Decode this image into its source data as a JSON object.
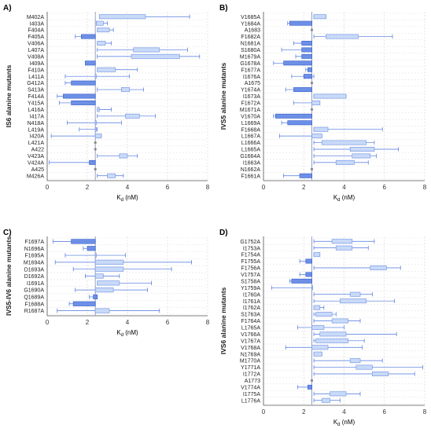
{
  "figure": {
    "colors": {
      "above": "#c9daf8",
      "above_stroke": "#7a9be6",
      "below": "#6d8fe6",
      "below_stroke": "#3f66d0",
      "whisker": "#4a73dc",
      "ref_line": "#9aa4b8",
      "grid": "#d9d9d9",
      "zero": "#888888"
    }
  },
  "chart_data": [
    {
      "type": "box",
      "panel_label": "A)",
      "ylabel": "IS6 alanine mutants",
      "xlabel": "K",
      "xlabel_sub": "d",
      "xlabel_unit": " (nM)",
      "xlim": [
        0,
        8
      ],
      "xticks": [
        "0",
        "2",
        "4",
        "6",
        "8"
      ],
      "reference_value": 2.4,
      "grid": true,
      "categories": [
        "M402A",
        "I403A",
        "F404A",
        "F405A",
        "V406A",
        "L407A",
        "V408A",
        "I409A",
        "F410A",
        "L411A",
        "G412A",
        "S413A",
        "F414A",
        "Y415A",
        "L416A",
        "I417A",
        "N418A",
        "L419A",
        "I420A",
        "L421A",
        "A422",
        "V423A",
        "V424A",
        "A425",
        "M426A"
      ],
      "boxes": [
        {
          "min": 2.6,
          "q1": 2.6,
          "q3": 4.9,
          "max": 7.1
        },
        {
          "min": 2.45,
          "q1": 2.45,
          "q3": 2.8,
          "max": 3.0
        },
        {
          "min": 2.5,
          "q1": 2.5,
          "q3": 3.1,
          "max": 3.3
        },
        {
          "min": 1.4,
          "q1": 1.7,
          "q3": 2.4,
          "max": 2.4
        },
        {
          "min": 2.5,
          "q1": 2.5,
          "q3": 2.9,
          "max": 3.2
        },
        {
          "min": 2.5,
          "q1": 4.3,
          "q3": 5.6,
          "max": 7.0
        },
        {
          "min": 2.5,
          "q1": 4.2,
          "q3": 6.6,
          "max": 7.6
        },
        {
          "min": 1.9,
          "q1": 1.9,
          "q3": 2.4,
          "max": 2.4
        },
        {
          "min": 2.5,
          "q1": 2.5,
          "q3": 3.4,
          "max": 4.5
        },
        {
          "min": 0.9,
          "q1": 2.4,
          "q3": 2.4,
          "max": 4.1
        },
        {
          "min": 0.9,
          "q1": 1.2,
          "q3": 2.4,
          "max": 2.4
        },
        {
          "min": 2.5,
          "q1": 3.7,
          "q3": 4.1,
          "max": 4.8
        },
        {
          "min": 0.5,
          "q1": 0.8,
          "q3": 2.4,
          "max": 2.4
        },
        {
          "min": 0.6,
          "q1": 1.2,
          "q3": 2.4,
          "max": 2.4
        },
        {
          "min": 2.5,
          "q1": 2.5,
          "q3": 2.6,
          "max": 3.2
        },
        {
          "min": 2.5,
          "q1": 3.9,
          "q3": 4.6,
          "max": 5.4
        },
        {
          "min": 1.0,
          "q1": 2.4,
          "q3": 2.4,
          "max": 3.7
        },
        {
          "min": 1.6,
          "q1": 2.4,
          "q3": 2.4,
          "max": 2.5
        },
        {
          "min": 0.2,
          "q1": 2.4,
          "q3": 2.7,
          "max": 2.7
        },
        {
          "min": 2.4,
          "q1": 2.4,
          "q3": 2.4,
          "max": 2.4
        },
        {
          "min": 2.4,
          "q1": 2.4,
          "q3": 2.4,
          "max": 2.4
        },
        {
          "min": 2.5,
          "q1": 3.6,
          "q3": 4.0,
          "max": 4.5
        },
        {
          "min": 0.1,
          "q1": 2.1,
          "q3": 2.4,
          "max": 2.4
        },
        {
          "min": 2.4,
          "q1": 2.4,
          "q3": 2.4,
          "max": 2.4
        },
        {
          "min": 2.5,
          "q1": 3.0,
          "q3": 3.4,
          "max": 3.8
        }
      ],
      "dot_only": [
        19,
        20,
        23
      ]
    },
    {
      "type": "box",
      "panel_label": "B)",
      "ylabel": "IVS5 alanine mutants",
      "xlabel": "K",
      "xlabel_sub": "d",
      "xlabel_unit": " (nM)",
      "xlim": [
        0,
        8
      ],
      "xticks": [
        "0",
        "2",
        "4",
        "6",
        "8"
      ],
      "reference_value": 2.4,
      "grid": true,
      "categories": [
        "V1685A",
        "Y1684A",
        "A1683",
        "F1682A",
        "N1681A",
        "S1680A",
        "M1679A",
        "G1678A",
        "F1677A",
        "I1676A",
        "A1675",
        "Y1674A",
        "I1673A",
        "F1672A",
        "M1671A",
        "V1670A",
        "L1669A",
        "F1668A",
        "L1667A",
        "L1666A",
        "L1665A",
        "G1664A",
        "I1663A",
        "N1662A",
        "F1661A"
      ],
      "boxes": [
        {
          "min": 2.5,
          "q1": 2.5,
          "q3": 3.1,
          "max": 3.1
        },
        {
          "min": 1.2,
          "q1": 1.3,
          "q3": 2.4,
          "max": 2.4
        },
        {
          "min": 2.4,
          "q1": 2.4,
          "q3": 2.4,
          "max": 2.4
        },
        {
          "min": 2.5,
          "q1": 3.1,
          "q3": 4.7,
          "max": 6.4
        },
        {
          "min": 1.5,
          "q1": 1.9,
          "q3": 2.4,
          "max": 2.4
        },
        {
          "min": 0.9,
          "q1": 1.9,
          "q3": 2.4,
          "max": 2.4
        },
        {
          "min": 1.6,
          "q1": 1.9,
          "q3": 2.4,
          "max": 2.4
        },
        {
          "min": 0.5,
          "q1": 1.0,
          "q3": 2.4,
          "max": 2.4
        },
        {
          "min": 2.1,
          "q1": 2.2,
          "q3": 2.4,
          "max": 2.4
        },
        {
          "min": 1.4,
          "q1": 2.0,
          "q3": 2.4,
          "max": 2.5
        },
        {
          "min": 2.4,
          "q1": 2.4,
          "q3": 2.4,
          "max": 2.4
        },
        {
          "min": 1.1,
          "q1": 1.5,
          "q3": 2.4,
          "max": 2.4
        },
        {
          "min": 2.5,
          "q1": 2.5,
          "q3": 4.1,
          "max": 4.1
        },
        {
          "min": 1.5,
          "q1": 2.4,
          "q3": 2.8,
          "max": 2.8
        },
        {
          "min": 2.4,
          "q1": 2.4,
          "q3": 2.4,
          "max": 2.4
        },
        {
          "min": 0.5,
          "q1": 0.6,
          "q3": 2.4,
          "max": 2.4
        },
        {
          "min": 0.9,
          "q1": 1.2,
          "q3": 2.4,
          "max": 2.4
        },
        {
          "min": 2.5,
          "q1": 2.5,
          "q3": 3.2,
          "max": 5.9
        },
        {
          "min": 0.8,
          "q1": 2.4,
          "q3": 2.9,
          "max": 2.9
        },
        {
          "min": 2.5,
          "q1": 2.9,
          "q3": 5.1,
          "max": 5.5
        },
        {
          "min": 2.5,
          "q1": 4.3,
          "q3": 5.5,
          "max": 6.7
        },
        {
          "min": 2.5,
          "q1": 4.4,
          "q3": 5.3,
          "max": 5.6
        },
        {
          "min": 2.5,
          "q1": 3.6,
          "q3": 4.5,
          "max": 5.2
        },
        {
          "min": 2.4,
          "q1": 2.4,
          "q3": 2.4,
          "max": 2.4
        },
        {
          "min": 1.0,
          "q1": 1.8,
          "q3": 2.4,
          "max": 2.4
        }
      ],
      "dot_only": [
        2,
        10,
        14,
        23
      ]
    },
    {
      "type": "box",
      "panel_label": "C)",
      "ylabel": "IVS5-IV6 alanine mutants",
      "xlabel": "K",
      "xlabel_sub": "d",
      "xlabel_unit": " (nM)",
      "xlim": [
        0,
        8
      ],
      "xticks": [
        "0",
        "2",
        "4",
        "6",
        "8"
      ],
      "reference_value": 2.4,
      "grid": true,
      "categories": [
        "F1697A",
        "N1696A",
        "F1695A",
        "M1694A",
        "D1693A",
        "D1692A",
        "I1691A",
        "G1690A",
        "Q1689A",
        "F1688A",
        "R1687A"
      ],
      "boxes": [
        {
          "min": 0.3,
          "q1": 1.2,
          "q3": 2.4,
          "max": 2.4
        },
        {
          "min": 1.8,
          "q1": 2.0,
          "q3": 2.4,
          "max": 2.4
        },
        {
          "min": 0.9,
          "q1": 2.4,
          "q3": 2.4,
          "max": 3.9
        },
        {
          "min": 0.4,
          "q1": 2.4,
          "q3": 3.8,
          "max": 7.2
        },
        {
          "min": 1.3,
          "q1": 2.4,
          "q3": 3.8,
          "max": 6.2
        },
        {
          "min": 1.9,
          "q1": 2.4,
          "q3": 2.8,
          "max": 3.6
        },
        {
          "min": 2.5,
          "q1": 2.5,
          "q3": 3.6,
          "max": 5.2
        },
        {
          "min": 1.4,
          "q1": 2.4,
          "q3": 3.3,
          "max": 5.0
        },
        {
          "min": 2.1,
          "q1": 2.3,
          "q3": 2.5,
          "max": 2.5
        },
        {
          "min": 1.1,
          "q1": 1.3,
          "q3": 2.4,
          "max": 2.4
        },
        {
          "min": 0.5,
          "q1": 2.4,
          "q3": 3.1,
          "max": 5.6
        }
      ],
      "dot_only": []
    },
    {
      "type": "box",
      "panel_label": "D)",
      "ylabel": "IVS6 alanine mutants",
      "xlabel": "K",
      "xlabel_sub": "d",
      "xlabel_unit": " (nM)",
      "xlim": [
        0,
        8
      ],
      "xticks": [
        "0",
        "2",
        "4",
        "6",
        "8"
      ],
      "reference_value": 2.4,
      "grid": true,
      "categories": [
        "G1752A",
        "I1753A",
        "F1754A",
        "F1755A",
        "F1756A",
        "V1757A",
        "S1758A",
        "Y1759A",
        "I1760A",
        "I1761A",
        "I1762A",
        "S1763A",
        "F1764A",
        "L1765A",
        "V1766A",
        "V1767A",
        "V1768A",
        "N1769A",
        "M1770A",
        "Y1771A",
        "I1772A",
        "A1773",
        "V1774A",
        "I1775A",
        "L1776A"
      ],
      "boxes": [
        {
          "min": 2.5,
          "q1": 3.4,
          "q3": 4.4,
          "max": 5.5
        },
        {
          "min": 2.5,
          "q1": 3.6,
          "q3": 4.4,
          "max": 5.2
        },
        {
          "min": 2.5,
          "q1": 2.5,
          "q3": 2.8,
          "max": 2.8
        },
        {
          "min": 1.8,
          "q1": 2.1,
          "q3": 2.4,
          "max": 2.4
        },
        {
          "min": 2.5,
          "q1": 5.3,
          "q3": 6.1,
          "max": 6.8
        },
        {
          "min": 1.8,
          "q1": 2.1,
          "q3": 2.4,
          "max": 2.4
        },
        {
          "min": 1.3,
          "q1": 1.4,
          "q3": 2.4,
          "max": 2.4
        },
        {
          "min": 0.4,
          "q1": 2.4,
          "q3": 2.4,
          "max": 2.4
        },
        {
          "min": 2.5,
          "q1": 4.3,
          "q3": 4.8,
          "max": 5.4
        },
        {
          "min": 2.5,
          "q1": 3.8,
          "q3": 5.1,
          "max": 6.5
        },
        {
          "min": 2.5,
          "q1": 2.5,
          "q3": 2.8,
          "max": 3.0
        },
        {
          "min": 2.5,
          "q1": 2.6,
          "q3": 3.4,
          "max": 3.6
        },
        {
          "min": 2.5,
          "q1": 3.4,
          "q3": 4.2,
          "max": 4.8
        },
        {
          "min": 1.7,
          "q1": 2.4,
          "q3": 3.0,
          "max": 4.0
        },
        {
          "min": 2.5,
          "q1": 2.8,
          "q3": 4.1,
          "max": 6.6
        },
        {
          "min": 2.5,
          "q1": 2.6,
          "q3": 4.2,
          "max": 5.0
        },
        {
          "min": 1.1,
          "q1": 2.4,
          "q3": 3.2,
          "max": 4.9
        },
        {
          "min": 2.5,
          "q1": 2.5,
          "q3": 2.9,
          "max": 2.9
        },
        {
          "min": 2.5,
          "q1": 4.3,
          "q3": 4.8,
          "max": 5.9
        },
        {
          "min": 2.5,
          "q1": 4.6,
          "q3": 5.4,
          "max": 7.9
        },
        {
          "min": 2.5,
          "q1": 5.4,
          "q3": 6.2,
          "max": 7.5
        },
        {
          "min": 2.4,
          "q1": 2.4,
          "q3": 2.4,
          "max": 2.4
        },
        {
          "min": 1.7,
          "q1": 2.2,
          "q3": 2.4,
          "max": 2.4
        },
        {
          "min": 2.5,
          "q1": 3.3,
          "q3": 4.1,
          "max": 4.8
        },
        {
          "min": 2.5,
          "q1": 2.9,
          "q3": 3.3,
          "max": 3.8
        }
      ],
      "dot_only": [
        21
      ]
    }
  ]
}
